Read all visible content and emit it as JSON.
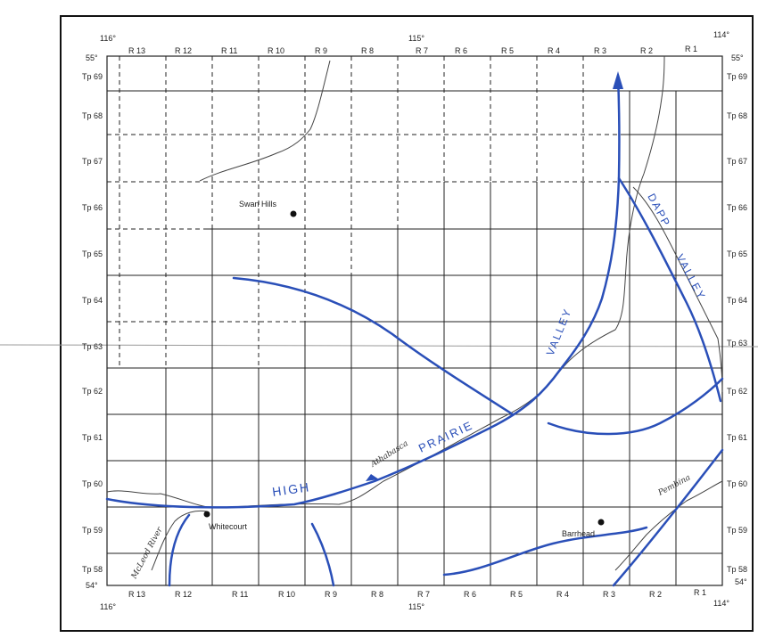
{
  "map": {
    "ranges_top": [
      "R 13",
      "R 12",
      "R 11",
      "R 10",
      "R 9",
      "R 8",
      "R 7",
      "R 6",
      "R 5",
      "R 4",
      "R 3",
      "R 2",
      "R 1"
    ],
    "ranges_bottom": [
      "R 13",
      "R 12",
      "R 11",
      "R 10",
      "R 9",
      "R 8",
      "R 7",
      "R 6",
      "R 5",
      "R 4",
      "R 3",
      "R 2",
      "R 1"
    ],
    "townships": [
      "Tp 69",
      "Tp 68",
      "Tp 67",
      "Tp 66",
      "Tp 65",
      "Tp 64",
      "Tp 63",
      "Tp 62",
      "Tp 61",
      "Tp 60",
      "Tp 59",
      "Tp 58"
    ],
    "longitudes": {
      "west": "116°",
      "center": "115°",
      "east": "114°"
    },
    "latitudes": {
      "north": "55°",
      "south": "54°"
    },
    "places": {
      "swan_hills": "Swan Hills",
      "whitecourt": "Whitecourt",
      "barrhead": "Barrhead"
    },
    "rivers": {
      "mcleod": "McLeod River",
      "athabasca": "Athabasca",
      "pembina": "Pembina"
    },
    "valley_labels": {
      "high": "HIGH",
      "prairie": "PRAIRIE",
      "valley_a": "VALLEY",
      "dapp": "DAPP",
      "valley_b": "VALLEY"
    },
    "colors": {
      "valley_line": "#2a4fb8",
      "grid": "#222222",
      "river": "#444444"
    }
  }
}
